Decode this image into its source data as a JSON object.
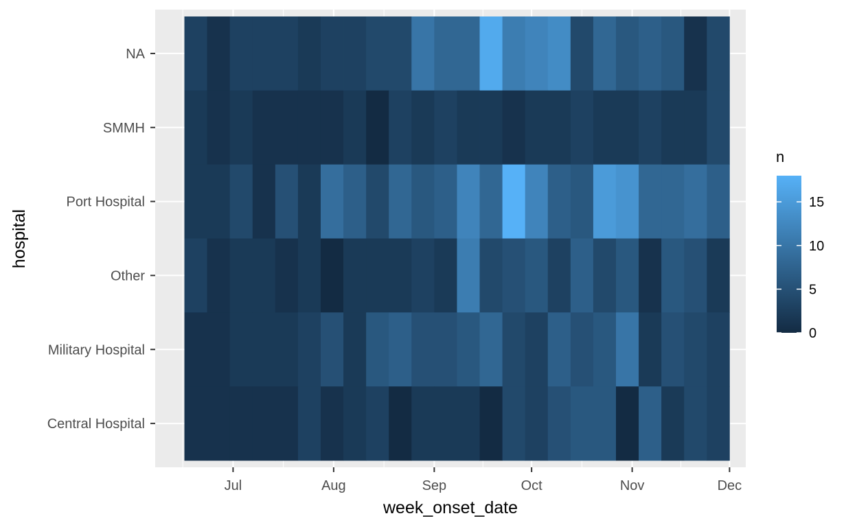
{
  "chart_data": {
    "type": "heatmap",
    "xlabel": "week_onset_date",
    "ylabel": "hospital",
    "x_tick_labels": [
      "Jul",
      "Aug",
      "Sep",
      "Oct",
      "Nov",
      "Dec"
    ],
    "x_tick_dates": [
      "2014-07-01",
      "2014-08-01",
      "2014-09-01",
      "2014-10-01",
      "2014-11-01",
      "2014-12-01"
    ],
    "x_range": [
      "2014-06-07",
      "2014-12-06"
    ],
    "week_starts": [
      "2014-06-16",
      "2014-06-23",
      "2014-06-30",
      "2014-07-07",
      "2014-07-14",
      "2014-07-21",
      "2014-07-28",
      "2014-08-04",
      "2014-08-11",
      "2014-08-18",
      "2014-08-25",
      "2014-09-01",
      "2014-09-08",
      "2014-09-15",
      "2014-09-22",
      "2014-09-29",
      "2014-10-06",
      "2014-10-13",
      "2014-10-20",
      "2014-10-27",
      "2014-11-03",
      "2014-11-10",
      "2014-11-17",
      "2014-11-24"
    ],
    "hospitals": [
      "NA",
      "SMMH",
      "Port Hospital",
      "Other",
      "Military Hospital",
      "Central Hospital"
    ],
    "values": {
      "NA": [
        3,
        1,
        3,
        3,
        3,
        2,
        3,
        3,
        4,
        4,
        10,
        8,
        8,
        17,
        11,
        12,
        13,
        4,
        8,
        6,
        7,
        6,
        1,
        4
      ],
      "SMMH": [
        2,
        1,
        2,
        1,
        1,
        1,
        1,
        2,
        0,
        3,
        2,
        3,
        2,
        2,
        1,
        2,
        2,
        3,
        2,
        2,
        3,
        2,
        2,
        4
      ],
      "Port Hospital": [
        2,
        2,
        4,
        1,
        5,
        2,
        9,
        7,
        4,
        8,
        6,
        7,
        12,
        8,
        18,
        12,
        7,
        6,
        15,
        14,
        8,
        8,
        9,
        7
      ],
      "Other": [
        3,
        1,
        2,
        2,
        1,
        2,
        0,
        2,
        2,
        2,
        3,
        2,
        11,
        4,
        5,
        6,
        3,
        7,
        4,
        6,
        1,
        6,
        5,
        2
      ],
      "Military Hospital": [
        1,
        1,
        2,
        2,
        2,
        3,
        5,
        2,
        6,
        7,
        5,
        5,
        6,
        8,
        4,
        3,
        7,
        5,
        6,
        10,
        2,
        5,
        4,
        3
      ],
      "Central Hospital": [
        1,
        1,
        1,
        1,
        1,
        3,
        1,
        2,
        3,
        0,
        2,
        2,
        2,
        0,
        4,
        3,
        5,
        6,
        6,
        0,
        7,
        2,
        4,
        3
      ]
    },
    "fill_scale": {
      "min": 0,
      "max": 18,
      "low_color": "#132B43",
      "high_color": "#56B1F7"
    },
    "legend": {
      "title": "n",
      "ticks": [
        0,
        5,
        10,
        15
      ],
      "position": "right"
    },
    "panel_background": "#EBEBEB",
    "grid": true
  }
}
